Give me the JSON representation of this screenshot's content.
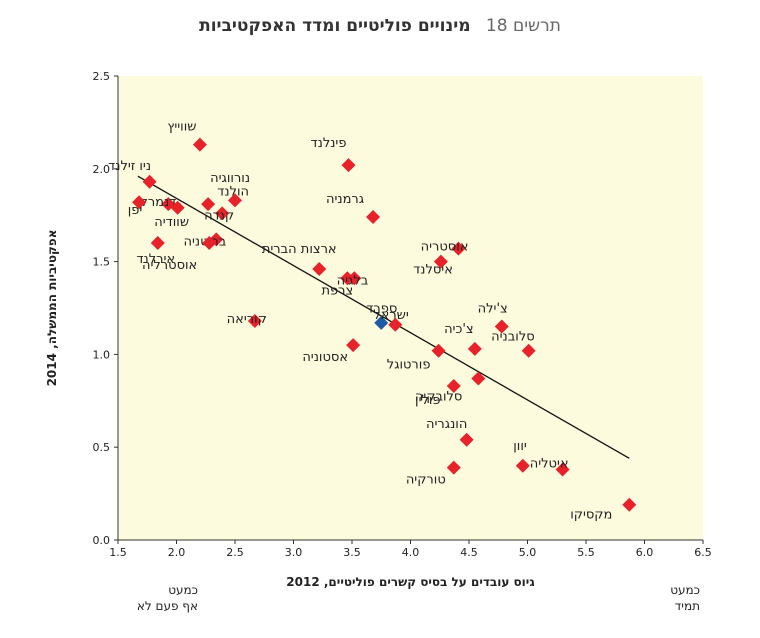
{
  "title": {
    "number": "תרשים 18",
    "text": "מינויים פוליטיים ומדד האפקטיביות"
  },
  "corner_left": {
    "line1": "כמעט",
    "line2": "אף פעם לא"
  },
  "corner_right": {
    "line1": "כמעט",
    "line2": "תמיד"
  },
  "colors": {
    "plot_bg": "#fdfbdd",
    "point": "#e8222a",
    "israel": "#1f5aa8",
    "trend": "#111111"
  },
  "chart_data": {
    "type": "scatter",
    "title": "מינויים פוליטיים ומדד האפקטיביות",
    "xlabel": "גיוס עובדים על בסיס קשרים פוליטיים, 2012",
    "ylabel": "אפקטיביות הממשלה, 2014",
    "xlim": [
      1.5,
      6.5
    ],
    "ylim": [
      0.0,
      2.5
    ],
    "xticks": [
      "1.5",
      "2.0",
      "2.5",
      "3.0",
      "3.5",
      "4.0",
      "4.5",
      "5.0",
      "5.5",
      "6.0",
      "6.5"
    ],
    "yticks": [
      "0.0",
      "0.5",
      "1.0",
      "1.5",
      "2.0",
      "2.5"
    ],
    "trendline": {
      "x": [
        1.67,
        5.87
      ],
      "y": [
        1.96,
        0.44
      ]
    },
    "points": [
      {
        "label": "שווייץ",
        "x": 2.2,
        "y": 2.13
      },
      {
        "label": "ניו זילנד",
        "x": 1.77,
        "y": 1.93
      },
      {
        "label": "דנמרק",
        "x": 1.93,
        "y": 1.81
      },
      {
        "label": "יפן",
        "x": 1.68,
        "y": 1.82
      },
      {
        "label": "שוודיה",
        "x": 2.01,
        "y": 1.79
      },
      {
        "label": "נורווגיה",
        "x": 2.27,
        "y": 1.81
      },
      {
        "label": "הולנד",
        "x": 2.5,
        "y": 1.83
      },
      {
        "label": "קנדה",
        "x": 2.39,
        "y": 1.76
      },
      {
        "label": "בריטניה",
        "x": 2.34,
        "y": 1.62
      },
      {
        "label": "אוסטרליה",
        "x": 2.28,
        "y": 1.6
      },
      {
        "label": "אירלנד",
        "x": 1.84,
        "y": 1.6
      },
      {
        "label": "פינלנד",
        "x": 3.47,
        "y": 2.02
      },
      {
        "label": "גרמניה",
        "x": 3.68,
        "y": 1.74
      },
      {
        "label": "ארצות הברית",
        "x": 3.22,
        "y": 1.46
      },
      {
        "label": "צרפת",
        "x": 3.46,
        "y": 1.41
      },
      {
        "label": "בלגיה",
        "x": 3.52,
        "y": 1.41
      },
      {
        "label": "קוריאה",
        "x": 2.67,
        "y": 1.18
      },
      {
        "label": "ישראל",
        "x": 3.75,
        "y": 1.17,
        "highlight": true
      },
      {
        "label": "ספרד",
        "x": 3.87,
        "y": 1.16
      },
      {
        "label": "אסטוניה",
        "x": 3.51,
        "y": 1.05
      },
      {
        "label": "אוסטריה",
        "x": 4.41,
        "y": 1.57
      },
      {
        "label": "איסלנד",
        "x": 4.26,
        "y": 1.5
      },
      {
        "label": "צ'ילה",
        "x": 4.78,
        "y": 1.15
      },
      {
        "label": "צ'כיה",
        "x": 4.55,
        "y": 1.03
      },
      {
        "label": "סלובניה",
        "x": 5.01,
        "y": 1.02
      },
      {
        "label": "פורטוגל",
        "x": 4.24,
        "y": 1.02
      },
      {
        "label": "סלובקיה",
        "x": 4.58,
        "y": 0.87
      },
      {
        "label": "פולין",
        "x": 4.37,
        "y": 0.83
      },
      {
        "label": "הונגריה",
        "x": 4.48,
        "y": 0.54
      },
      {
        "label": "יוון",
        "x": 4.96,
        "y": 0.4
      },
      {
        "label": "איטליה",
        "x": 5.3,
        "y": 0.38
      },
      {
        "label": "טורקיה",
        "x": 4.37,
        "y": 0.39
      },
      {
        "label": "מקסיקו",
        "x": 5.87,
        "y": 0.19
      }
    ]
  }
}
